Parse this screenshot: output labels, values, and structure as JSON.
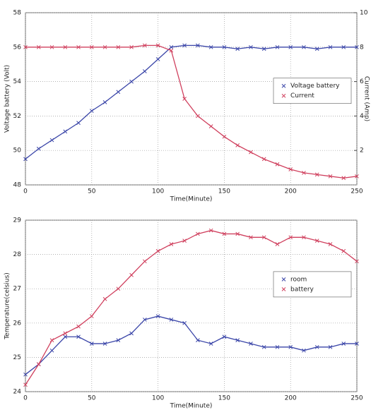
{
  "chart_data": [
    {
      "type": "scatter-line",
      "x_label": "Time(Minute)",
      "y_label": "Voltage battery (Volt)",
      "y2_label": "Current (Amp)",
      "x": [
        0,
        10,
        20,
        30,
        40,
        50,
        60,
        70,
        80,
        90,
        100,
        110,
        120,
        130,
        140,
        150,
        160,
        170,
        180,
        190,
        200,
        210,
        220,
        230,
        240,
        250
      ],
      "series": [
        {
          "name": "Voltage battery",
          "color": "#3a45a8",
          "values": [
            49.5,
            50.1,
            50.6,
            51.1,
            51.6,
            52.3,
            52.8,
            53.4,
            54.0,
            54.6,
            55.3,
            56.0,
            56.1,
            56.1,
            56.0,
            56.0,
            55.9,
            56.0,
            55.9,
            56.0,
            56.0,
            56.0,
            55.9,
            56.0,
            56.0,
            56.0
          ]
        },
        {
          "name": "Current",
          "color": "#d0405e",
          "axis": "y2",
          "values": [
            8.0,
            8.0,
            8.0,
            8.0,
            8.0,
            8.0,
            8.0,
            8.0,
            8.0,
            8.1,
            8.1,
            7.8,
            5.0,
            4.0,
            3.4,
            2.8,
            2.3,
            1.9,
            1.5,
            1.2,
            0.9,
            0.7,
            0.6,
            0.5,
            0.4,
            0.5
          ]
        }
      ],
      "xlim": [
        0,
        250
      ],
      "xticks": [
        0,
        50,
        100,
        150,
        200,
        250
      ],
      "ylim": [
        48,
        58
      ],
      "yticks": [
        48,
        50,
        52,
        54,
        56,
        58
      ],
      "y2lim": [
        0,
        10
      ],
      "y2ticks": [
        2,
        4,
        6,
        8,
        10
      ],
      "grid": true,
      "legend": "right"
    },
    {
      "type": "scatter-line",
      "x_label": "Time(Minute)",
      "y_label": "Temperature(celsius)",
      "x": [
        0,
        10,
        20,
        30,
        40,
        50,
        60,
        70,
        80,
        90,
        100,
        110,
        120,
        130,
        140,
        150,
        160,
        170,
        180,
        190,
        200,
        210,
        220,
        230,
        240,
        250
      ],
      "series": [
        {
          "name": "room",
          "color": "#3a45a8",
          "values": [
            24.5,
            24.8,
            25.2,
            25.6,
            25.6,
            25.4,
            25.4,
            25.5,
            25.7,
            26.1,
            26.2,
            26.1,
            26.0,
            25.5,
            25.4,
            25.6,
            25.5,
            25.4,
            25.3,
            25.3,
            25.3,
            25.2,
            25.3,
            25.3,
            25.4,
            25.4
          ]
        },
        {
          "name": "battery",
          "color": "#d0405e",
          "values": [
            24.2,
            24.8,
            25.5,
            25.7,
            25.9,
            26.2,
            26.7,
            27.0,
            27.4,
            27.8,
            28.1,
            28.3,
            28.4,
            28.6,
            28.7,
            28.6,
            28.6,
            28.5,
            28.5,
            28.3,
            28.5,
            28.5,
            28.4,
            28.3,
            28.1,
            27.8
          ]
        }
      ],
      "xlim": [
        0,
        250
      ],
      "xticks": [
        0,
        50,
        100,
        150,
        200,
        250
      ],
      "ylim": [
        24,
        29
      ],
      "yticks": [
        24,
        25,
        26,
        27,
        28,
        29
      ],
      "grid": true,
      "legend": "right"
    }
  ]
}
